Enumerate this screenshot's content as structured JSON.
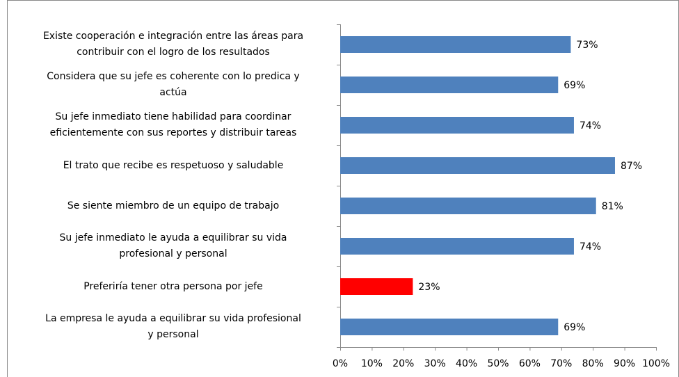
{
  "chart_data": {
    "type": "bar",
    "orientation": "horizontal",
    "categories": [
      "Existe cooperación e integración entre las áreas para\ncontribuir con el logro de los resultados",
      "Considera que su jefe es coherente con lo predica y\nactúa",
      "Su jefe inmediato tiene habilidad para coordinar\neficientemente con sus reportes y distribuir tareas",
      "El trato que recibe es respetuoso y saludable",
      "Se siente miembro de un equipo de trabajo",
      "Su jefe inmediato le ayuda a equilibrar su vida\nprofesional y personal",
      "Preferiría tener otra persona por jefe",
      "La empresa le ayuda a equilibrar su vida profesional\ny personal"
    ],
    "values": [
      73,
      69,
      74,
      87,
      81,
      74,
      23,
      69
    ],
    "value_labels": [
      "73%",
      "69%",
      "74%",
      "87%",
      "81%",
      "74%",
      "23%",
      "69%"
    ],
    "colors": [
      "#4f81bd",
      "#4f81bd",
      "#4f81bd",
      "#4f81bd",
      "#4f81bd",
      "#4f81bd",
      "#ff0000",
      "#4f81bd"
    ],
    "xlim": [
      0,
      100
    ],
    "xticks": [
      {
        "value": 0,
        "label": "0%"
      },
      {
        "value": 10,
        "label": "10%"
      },
      {
        "value": 20,
        "label": "20%"
      },
      {
        "value": 30,
        "label": "30%"
      },
      {
        "value": 40,
        "label": "40%"
      },
      {
        "value": 50,
        "label": "50%"
      },
      {
        "value": 60,
        "label": "60%"
      },
      {
        "value": 70,
        "label": "70%"
      },
      {
        "value": 80,
        "label": "80%"
      },
      {
        "value": 90,
        "label": "90%"
      },
      {
        "value": 100,
        "label": "100%"
      }
    ],
    "grid": false
  }
}
